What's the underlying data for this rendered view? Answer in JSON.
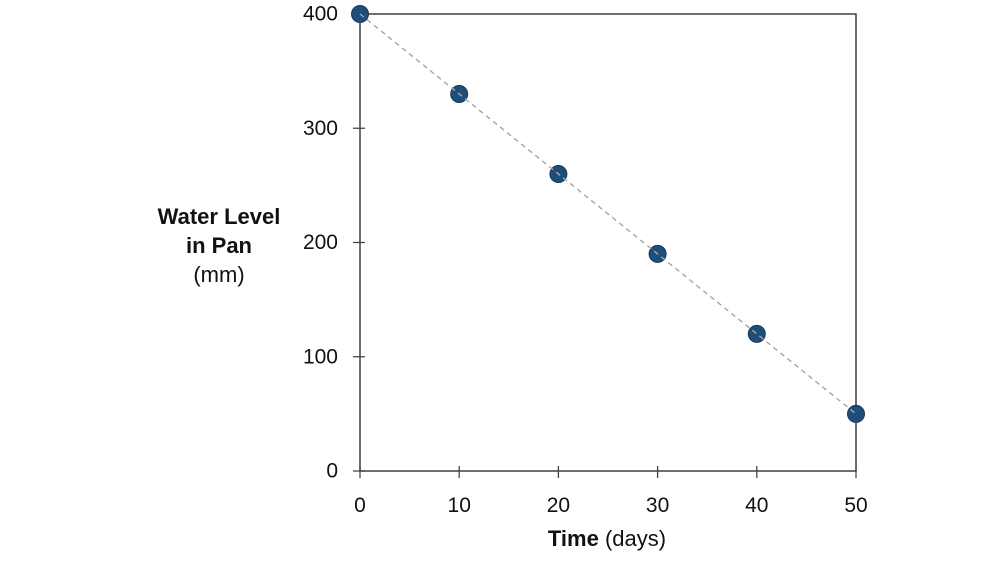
{
  "chart_data": {
    "type": "scatter",
    "title": "",
    "x": [
      0,
      10,
      20,
      30,
      40,
      50
    ],
    "y": [
      400,
      330,
      260,
      190,
      120,
      50
    ],
    "series_name": "Water Level in Pan",
    "xlabel": "Time",
    "xlabel_unit": "(days)",
    "ylabel_lines": [
      "Water Level",
      "in Pan"
    ],
    "ylabel_unit": "(mm)",
    "xlim": [
      0,
      50
    ],
    "ylim": [
      0,
      400
    ],
    "x_ticks": [
      0,
      10,
      20,
      30,
      40,
      50
    ],
    "y_ticks": [
      0,
      100,
      200,
      300,
      400
    ],
    "grid": false,
    "legend": "none",
    "line_style": "dashed",
    "marker_color": "#1F4E79",
    "marker_edge_color": "#16395B",
    "line_color": "#A6A6A6",
    "axis_color": "#404040",
    "text_color": "#111111"
  }
}
